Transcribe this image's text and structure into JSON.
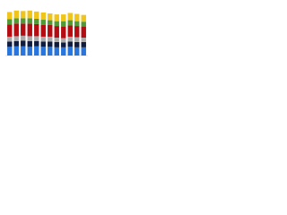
{
  "chart_data": {
    "type": "stacked-bar",
    "categories": [
      null,
      null,
      null,
      null,
      null,
      null,
      null,
      null,
      null,
      null,
      null,
      null
    ],
    "series": [
      {
        "color": "#2876dd",
        "values": [
          18,
          19,
          19,
          18,
          19,
          18,
          18,
          17,
          17,
          18,
          17,
          17
        ]
      },
      {
        "color": "#0f1c3f",
        "values": [
          11,
          11,
          12,
          12,
          11,
          11,
          11,
          11,
          10,
          11,
          11,
          11
        ]
      },
      {
        "color": "#a9a9a9",
        "values": [
          10,
          10,
          10,
          10,
          10,
          10,
          10,
          9,
          9,
          10,
          10,
          9
        ]
      },
      {
        "color": "#b50c12",
        "values": [
          25,
          26,
          25,
          26,
          25,
          24,
          24,
          24,
          24,
          23,
          23,
          23
        ]
      },
      {
        "color": "#4f9a36",
        "values": [
          11,
          11,
          11,
          11,
          11,
          11,
          10,
          10,
          11,
          11,
          10,
          10
        ]
      },
      {
        "color": "#f0c419",
        "values": [
          15,
          16,
          15,
          16,
          15,
          15,
          14,
          14,
          14,
          15,
          15,
          14
        ]
      }
    ],
    "ylim": [
      0,
      100
    ]
  }
}
